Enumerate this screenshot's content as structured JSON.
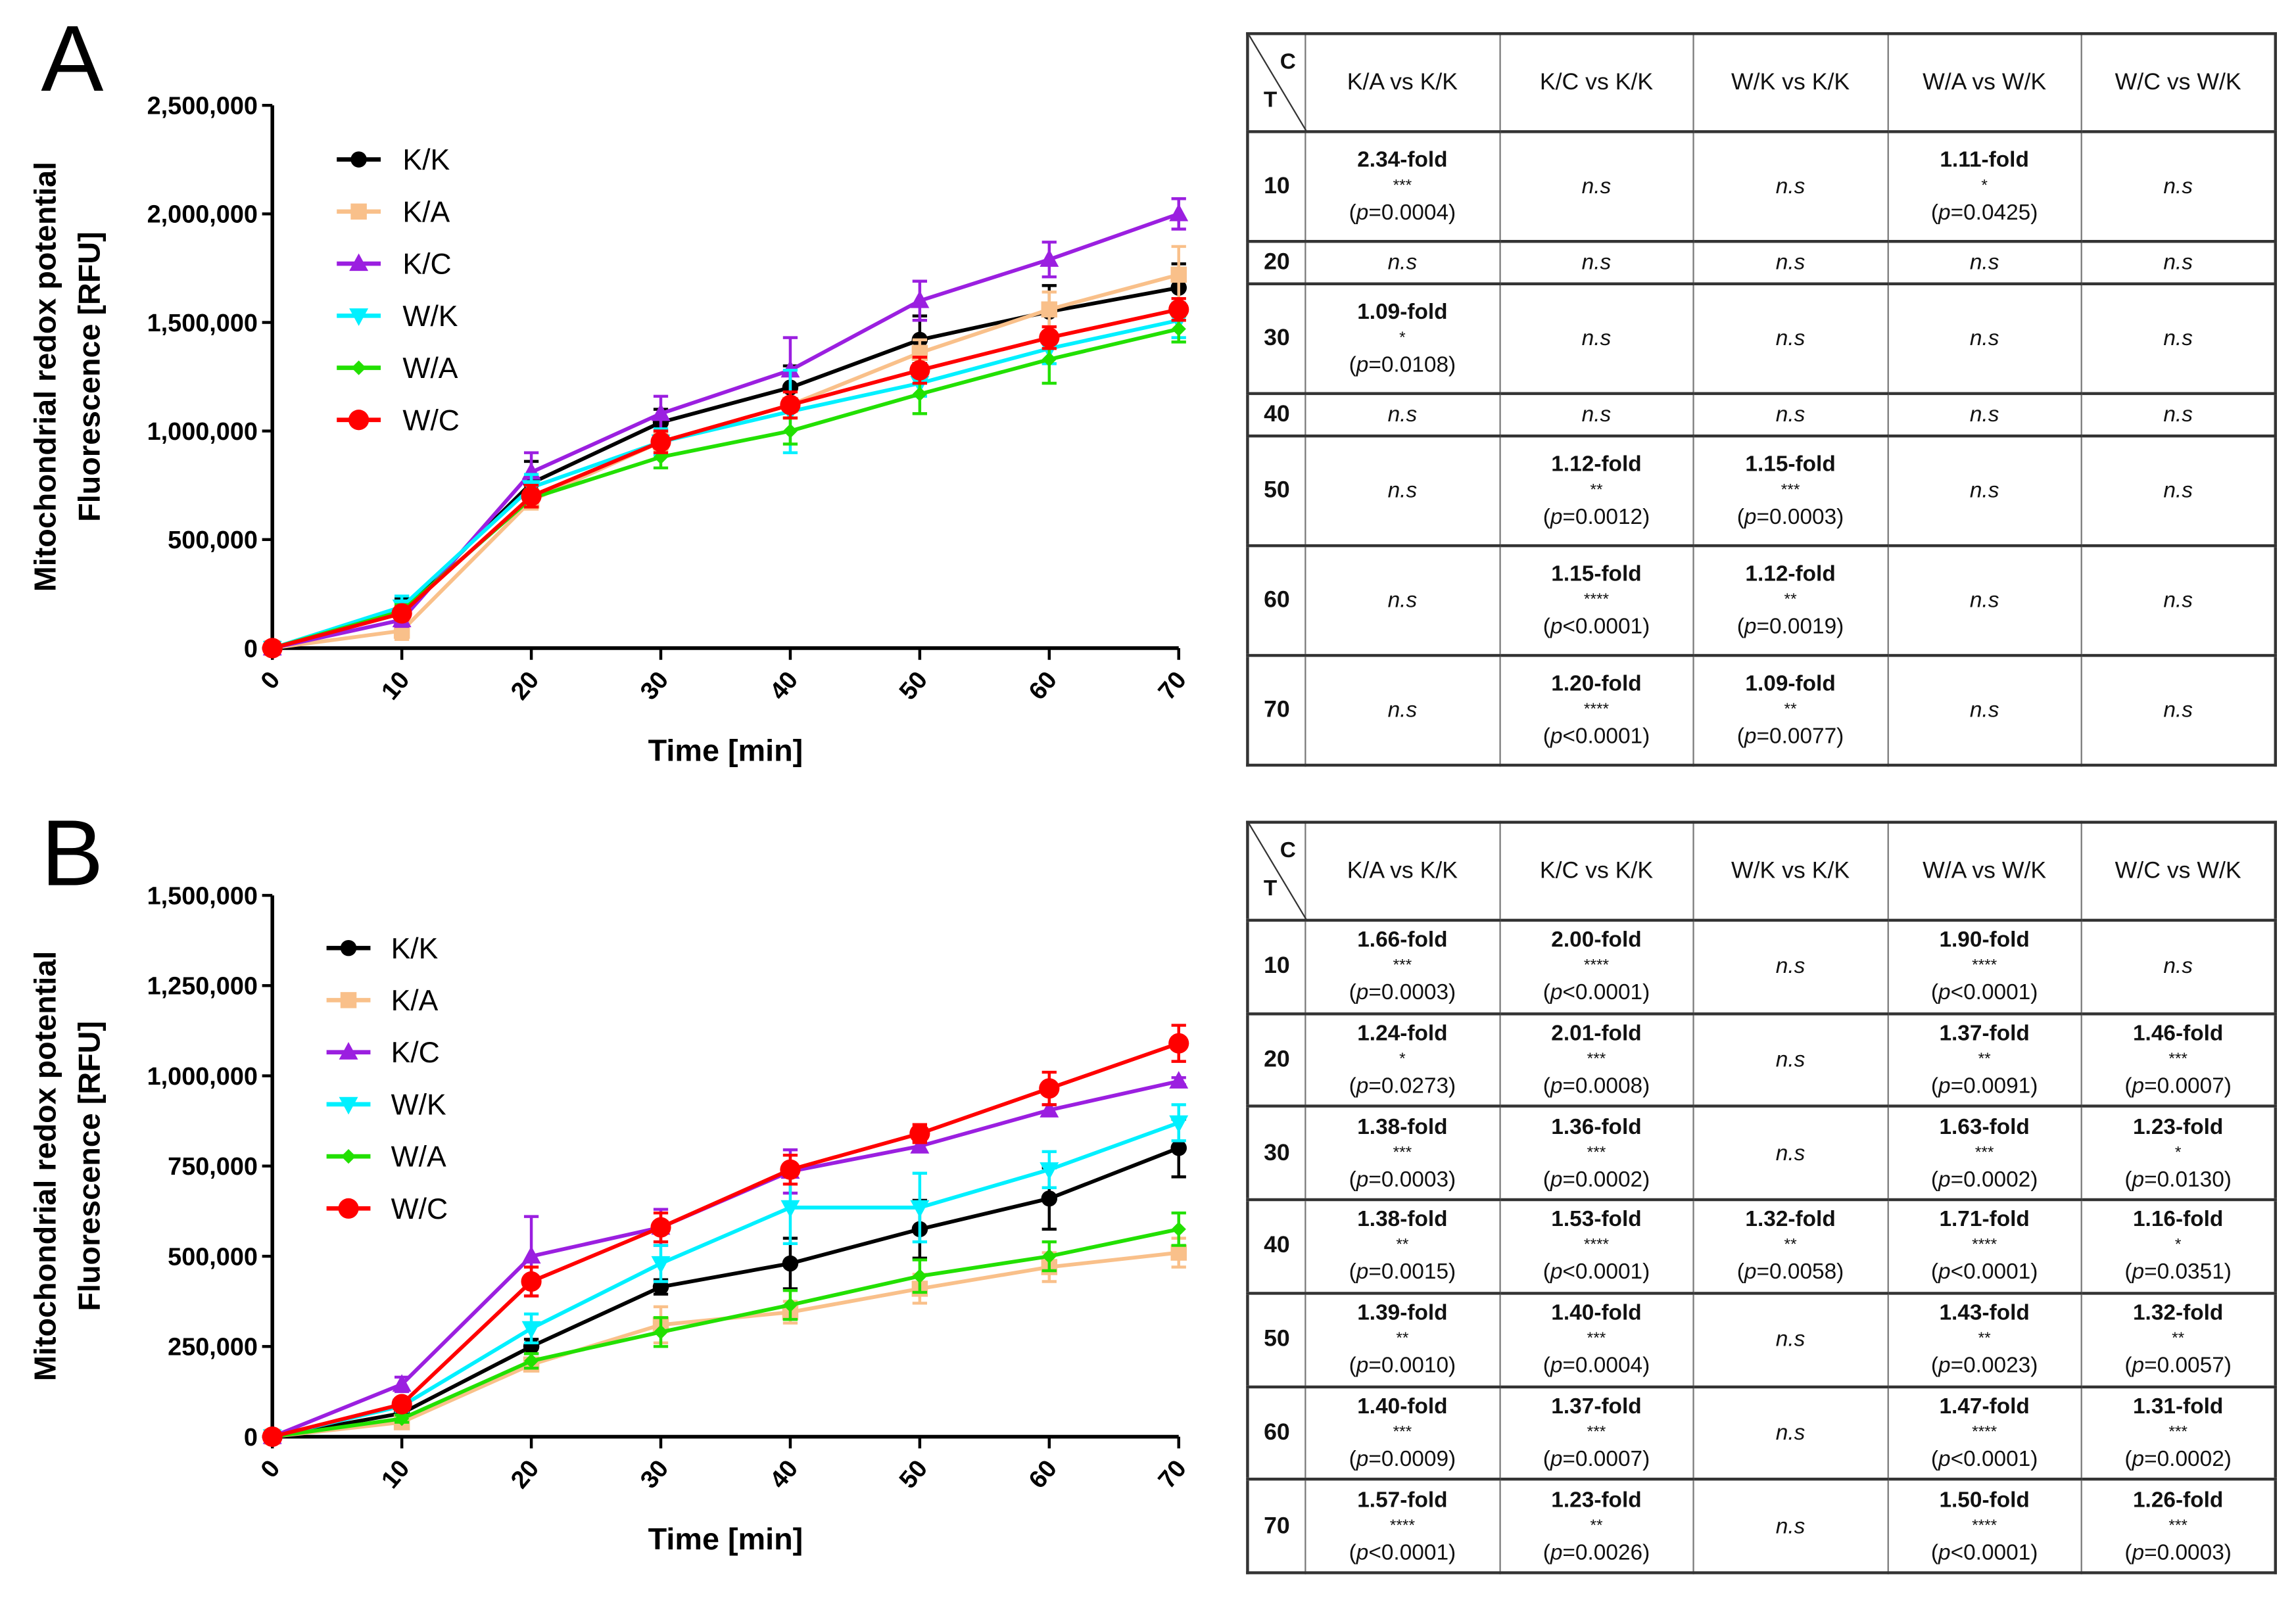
{
  "chart_data": [
    {
      "panel": "A",
      "type": "line",
      "xlabel": "Time [min]",
      "ylabel_lines": [
        "Mitochondrial redox potential",
        "Fluorescence [RFU]"
      ],
      "x": [
        0,
        10,
        20,
        30,
        40,
        50,
        60,
        70
      ],
      "xticks": [
        "0",
        "10",
        "20",
        "30",
        "40",
        "50",
        "60",
        "70"
      ],
      "ylim": [
        0,
        2500000
      ],
      "yticks": [
        0,
        500000,
        1000000,
        1500000,
        2000000,
        2500000
      ],
      "ytick_labels": [
        "0",
        "500,000",
        "1,000,000",
        "1,500,000",
        "2,000,000",
        "2,500,000"
      ],
      "legend_position": "top-left",
      "series": [
        {
          "name": "K/K",
          "color": "#000000",
          "marker": "circle",
          "values": [
            0,
            170000,
            760000,
            1040000,
            1200000,
            1420000,
            1550000,
            1660000
          ],
          "err": [
            0,
            60000,
            100000,
            60000,
            100000,
            110000,
            120000,
            110000
          ]
        },
        {
          "name": "K/A",
          "color": "#f9c08a",
          "marker": "square",
          "values": [
            0,
            80000,
            680000,
            950000,
            1120000,
            1360000,
            1560000,
            1720000
          ],
          "err": [
            0,
            40000,
            40000,
            40000,
            60000,
            60000,
            80000,
            130000
          ]
        },
        {
          "name": "K/C",
          "color": "#9b1fe0",
          "marker": "triangle-up",
          "values": [
            0,
            130000,
            810000,
            1080000,
            1280000,
            1600000,
            1790000,
            2000000
          ],
          "err": [
            0,
            30000,
            90000,
            80000,
            150000,
            90000,
            80000,
            70000
          ]
        },
        {
          "name": "W/K",
          "color": "#00f0ff",
          "marker": "triangle-down",
          "values": [
            0,
            190000,
            740000,
            950000,
            1090000,
            1220000,
            1380000,
            1510000
          ],
          "err": [
            0,
            50000,
            60000,
            60000,
            190000,
            60000,
            70000,
            80000
          ]
        },
        {
          "name": "W/A",
          "color": "#22e000",
          "marker": "diamond",
          "values": [
            0,
            170000,
            690000,
            880000,
            1000000,
            1170000,
            1330000,
            1470000
          ],
          "err": [
            0,
            30000,
            40000,
            50000,
            60000,
            90000,
            110000,
            60000
          ]
        },
        {
          "name": "W/C",
          "color": "#ff0000",
          "marker": "circle-large",
          "values": [
            0,
            160000,
            700000,
            950000,
            1120000,
            1280000,
            1430000,
            1560000
          ],
          "err": [
            0,
            30000,
            50000,
            50000,
            60000,
            60000,
            50000,
            50000
          ]
        }
      ]
    },
    {
      "panel": "B",
      "type": "line",
      "xlabel": "Time [min]",
      "ylabel_lines": [
        "Mitochondrial redox potential",
        "Fluorescence [RFU]"
      ],
      "x": [
        0,
        10,
        20,
        30,
        40,
        50,
        60,
        70
      ],
      "xticks": [
        "0",
        "10",
        "20",
        "30",
        "40",
        "50",
        "60",
        "70"
      ],
      "ylim": [
        0,
        1500000
      ],
      "yticks": [
        0,
        250000,
        500000,
        750000,
        1000000,
        1250000,
        1500000
      ],
      "ytick_labels": [
        "0",
        "250,000",
        "500,000",
        "750,000",
        "1,000,000",
        "1,250,000",
        "1,500,000"
      ],
      "legend_position": "top-left",
      "series": [
        {
          "name": "K/K",
          "color": "#000000",
          "marker": "circle",
          "values": [
            0,
            65000,
            250000,
            415000,
            480000,
            575000,
            660000,
            800000
          ],
          "err": [
            0,
            15000,
            20000,
            20000,
            70000,
            80000,
            85000,
            80000
          ]
        },
        {
          "name": "K/A",
          "color": "#f9c08a",
          "marker": "square",
          "values": [
            0,
            40000,
            200000,
            310000,
            345000,
            410000,
            470000,
            510000
          ],
          "err": [
            0,
            10000,
            15000,
            50000,
            30000,
            40000,
            40000,
            40000
          ]
        },
        {
          "name": "K/C",
          "color": "#9b1fe0",
          "marker": "triangle-up",
          "values": [
            0,
            145000,
            500000,
            580000,
            735000,
            805000,
            905000,
            985000
          ],
          "err": [
            0,
            20000,
            110000,
            50000,
            60000,
            15000,
            15000,
            10000
          ]
        },
        {
          "name": "W/K",
          "color": "#00f0ff",
          "marker": "triangle-down",
          "values": [
            0,
            85000,
            300000,
            480000,
            635000,
            635000,
            740000,
            870000
          ],
          "err": [
            0,
            15000,
            40000,
            50000,
            100000,
            95000,
            50000,
            50000
          ]
        },
        {
          "name": "W/A",
          "color": "#22e000",
          "marker": "diamond",
          "values": [
            0,
            50000,
            210000,
            290000,
            365000,
            445000,
            500000,
            575000
          ],
          "err": [
            0,
            10000,
            20000,
            40000,
            40000,
            45000,
            40000,
            45000
          ]
        },
        {
          "name": "W/C",
          "color": "#ff0000",
          "marker": "circle-large",
          "values": [
            0,
            90000,
            430000,
            580000,
            740000,
            840000,
            965000,
            1090000
          ],
          "err": [
            0,
            15000,
            40000,
            40000,
            40000,
            25000,
            45000,
            50000
          ]
        }
      ]
    }
  ],
  "tables": [
    {
      "panel": "A",
      "corner_col": "C",
      "corner_row": "T",
      "columns": [
        "K/A vs K/K",
        "K/C vs K/K",
        "W/K vs K/K",
        "W/A vs W/K",
        "W/C vs W/K"
      ],
      "rows": [
        {
          "time": "10",
          "cells": [
            {
              "fold": "2.34-fold",
              "stars": "***",
              "p": "=0.0004"
            },
            {
              "ns": "n.s"
            },
            {
              "ns": "n.s"
            },
            {
              "fold": "1.11-fold",
              "stars": "*",
              "p": "=0.0425"
            },
            {
              "ns": "n.s"
            }
          ]
        },
        {
          "time": "20",
          "cells": [
            {
              "ns": "n.s"
            },
            {
              "ns": "n.s"
            },
            {
              "ns": "n.s"
            },
            {
              "ns": "n.s"
            },
            {
              "ns": "n.s"
            }
          ]
        },
        {
          "time": "30",
          "cells": [
            {
              "fold": "1.09-fold",
              "stars": "*",
              "p": "=0.0108"
            },
            {
              "ns": "n.s"
            },
            {
              "ns": "n.s"
            },
            {
              "ns": "n.s"
            },
            {
              "ns": "n.s"
            }
          ]
        },
        {
          "time": "40",
          "cells": [
            {
              "ns": "n.s"
            },
            {
              "ns": "n.s"
            },
            {
              "ns": "n.s"
            },
            {
              "ns": "n.s"
            },
            {
              "ns": "n.s"
            }
          ]
        },
        {
          "time": "50",
          "cells": [
            {
              "ns": "n.s"
            },
            {
              "fold": "1.12-fold",
              "stars": "**",
              "p": "=0.0012"
            },
            {
              "fold": "1.15-fold",
              "stars": "***",
              "p": "=0.0003"
            },
            {
              "ns": "n.s"
            },
            {
              "ns": "n.s"
            }
          ]
        },
        {
          "time": "60",
          "cells": [
            {
              "ns": "n.s"
            },
            {
              "fold": "1.15-fold",
              "stars": "****",
              "p": "<0.0001"
            },
            {
              "fold": "1.12-fold",
              "stars": "**",
              "p": "=0.0019"
            },
            {
              "ns": "n.s"
            },
            {
              "ns": "n.s"
            }
          ]
        },
        {
          "time": "70",
          "cells": [
            {
              "ns": "n.s"
            },
            {
              "fold": "1.20-fold",
              "stars": "****",
              "p": "<0.0001"
            },
            {
              "fold": "1.09-fold",
              "stars": "**",
              "p": "=0.0077"
            },
            {
              "ns": "n.s"
            },
            {
              "ns": "n.s"
            }
          ]
        }
      ]
    },
    {
      "panel": "B",
      "corner_col": "C",
      "corner_row": "T",
      "columns": [
        "K/A vs K/K",
        "K/C vs K/K",
        "W/K vs K/K",
        "W/A vs W/K",
        "W/C vs W/K"
      ],
      "rows": [
        {
          "time": "10",
          "cells": [
            {
              "fold": "1.66-fold",
              "stars": "***",
              "p": "=0.0003"
            },
            {
              "fold": "2.00-fold",
              "stars": "****",
              "p": "<0.0001"
            },
            {
              "ns": "n.s"
            },
            {
              "fold": "1.90-fold",
              "stars": "****",
              "p": "<0.0001"
            },
            {
              "ns": "n.s"
            }
          ]
        },
        {
          "time": "20",
          "cells": [
            {
              "fold": "1.24-fold",
              "stars": "*",
              "p": "=0.0273"
            },
            {
              "fold": "2.01-fold",
              "stars": "***",
              "p": "=0.0008"
            },
            {
              "ns": "n.s"
            },
            {
              "fold": "1.37-fold",
              "stars": "**",
              "p": "=0.0091"
            },
            {
              "fold": "1.46-fold",
              "stars": "***",
              "p": "=0.0007"
            }
          ]
        },
        {
          "time": "30",
          "cells": [
            {
              "fold": "1.38-fold",
              "stars": "***",
              "p": "=0.0003"
            },
            {
              "fold": "1.36-fold",
              "stars": "***",
              "p": "=0.0002"
            },
            {
              "ns": "n.s"
            },
            {
              "fold": "1.63-fold",
              "stars": "***",
              "p": "=0.0002"
            },
            {
              "fold": "1.23-fold",
              "stars": "*",
              "p": "=0.0130"
            }
          ]
        },
        {
          "time": "40",
          "cells": [
            {
              "fold": "1.38-fold",
              "stars": "**",
              "p": "=0.0015"
            },
            {
              "fold": "1.53-fold",
              "stars": "****",
              "p": "<0.0001"
            },
            {
              "fold": "1.32-fold",
              "stars": "**",
              "p": "=0.0058"
            },
            {
              "fold": "1.71-fold",
              "stars": "****",
              "p": "<0.0001"
            },
            {
              "fold": "1.16-fold",
              "stars": "*",
              "p": "=0.0351"
            }
          ]
        },
        {
          "time": "50",
          "cells": [
            {
              "fold": "1.39-fold",
              "stars": "**",
              "p": "=0.0010"
            },
            {
              "fold": "1.40-fold",
              "stars": "***",
              "p": "=0.0004"
            },
            {
              "ns": "n.s"
            },
            {
              "fold": "1.43-fold",
              "stars": "**",
              "p": "=0.0023"
            },
            {
              "fold": "1.32-fold",
              "stars": "**",
              "p": "=0.0057"
            }
          ]
        },
        {
          "time": "60",
          "cells": [
            {
              "fold": "1.40-fold",
              "stars": "***",
              "p": "=0.0009"
            },
            {
              "fold": "1.37-fold",
              "stars": "***",
              "p": "=0.0007"
            },
            {
              "ns": "n.s"
            },
            {
              "fold": "1.47-fold",
              "stars": "****",
              "p": "<0.0001"
            },
            {
              "fold": "1.31-fold",
              "stars": "***",
              "p": "=0.0002"
            }
          ]
        },
        {
          "time": "70",
          "cells": [
            {
              "fold": "1.57-fold",
              "stars": "****",
              "p": "<0.0001"
            },
            {
              "fold": "1.23-fold",
              "stars": "**",
              "p": "=0.0026"
            },
            {
              "ns": "n.s"
            },
            {
              "fold": "1.50-fold",
              "stars": "****",
              "p": "<0.0001"
            },
            {
              "fold": "1.26-fold",
              "stars": "***",
              "p": "=0.0003"
            }
          ]
        }
      ]
    }
  ]
}
